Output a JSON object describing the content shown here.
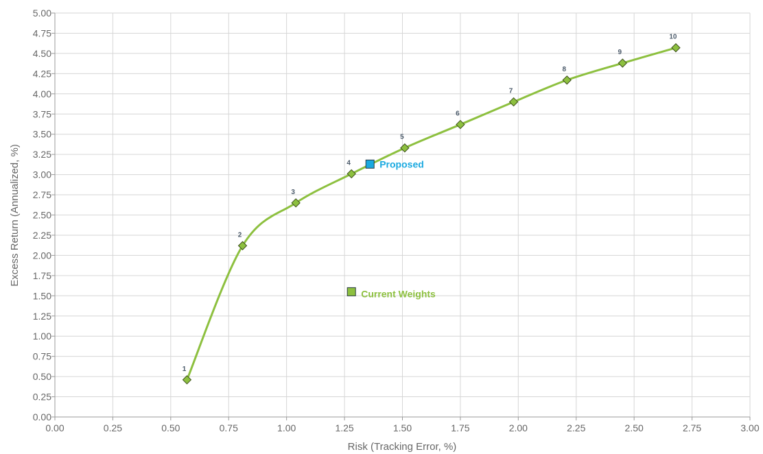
{
  "chart_data": {
    "type": "scatter",
    "xlabel": "Risk (Tracking Error, %)",
    "ylabel": "Excess Return (Annualized, %)",
    "xlim": [
      0,
      3
    ],
    "ylim": [
      0,
      5
    ],
    "x_ticks": [
      "0.00",
      "0.25",
      "0.50",
      "0.75",
      "1.00",
      "1.25",
      "1.50",
      "1.75",
      "2.00",
      "2.25",
      "2.50",
      "2.75",
      "3.00"
    ],
    "y_ticks": [
      "0.00",
      "0.25",
      "0.50",
      "0.75",
      "1.00",
      "1.25",
      "1.50",
      "1.75",
      "2.00",
      "2.25",
      "2.50",
      "2.75",
      "3.00",
      "3.25",
      "3.50",
      "3.75",
      "4.00",
      "4.25",
      "4.50",
      "4.75",
      "5.00"
    ],
    "grid": true,
    "series": [
      {
        "color": "#8dc03f",
        "marker": "diamond",
        "line": "smooth",
        "points": [
          {
            "label": "1",
            "x": 0.57,
            "y": 0.46
          },
          {
            "label": "2",
            "x": 0.81,
            "y": 2.12
          },
          {
            "label": "3",
            "x": 1.04,
            "y": 2.65
          },
          {
            "label": "4",
            "x": 1.28,
            "y": 3.01
          },
          {
            "label": "5",
            "x": 1.51,
            "y": 3.33
          },
          {
            "label": "6",
            "x": 1.75,
            "y": 3.62
          },
          {
            "label": "7",
            "x": 1.98,
            "y": 3.9
          },
          {
            "label": "8",
            "x": 2.21,
            "y": 4.17
          },
          {
            "label": "9",
            "x": 2.45,
            "y": 4.38
          },
          {
            "label": "10",
            "x": 2.68,
            "y": 4.57
          }
        ]
      }
    ],
    "annotations": [
      {
        "label": "Proposed",
        "x": 1.36,
        "y": 3.13,
        "color": "#1aa9e0",
        "marker": "square"
      },
      {
        "label": "Current Weights",
        "x": 1.28,
        "y": 1.55,
        "color": "#8dc03f",
        "marker": "square"
      }
    ]
  }
}
